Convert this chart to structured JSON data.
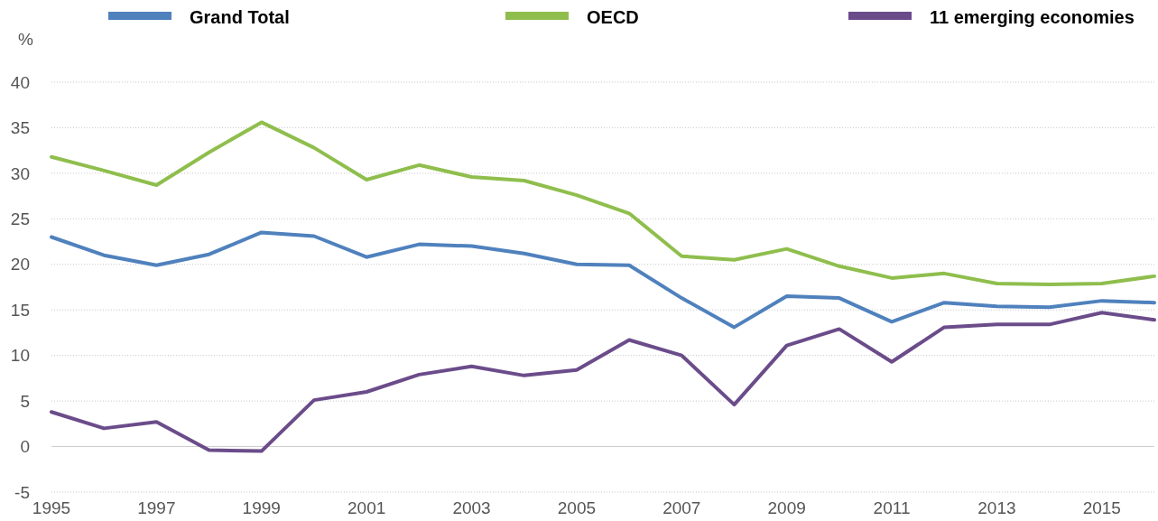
{
  "chart_data": {
    "type": "line",
    "ylabel": "%",
    "x": [
      1995,
      1996,
      1997,
      1998,
      1999,
      2000,
      2001,
      2002,
      2003,
      2004,
      2005,
      2006,
      2007,
      2008,
      2009,
      2010,
      2011,
      2012,
      2013,
      2014,
      2015,
      2016
    ],
    "series": [
      {
        "name": "Grand Total",
        "color": "#4f81bd",
        "values": [
          23.0,
          21.0,
          19.9,
          21.1,
          23.5,
          23.1,
          20.8,
          22.2,
          22.0,
          21.2,
          20.0,
          19.9,
          16.3,
          13.1,
          16.5,
          16.3,
          13.7,
          15.8,
          15.4,
          15.3,
          16.0,
          15.8
        ]
      },
      {
        "name": "OECD",
        "color": "#8fbe4d",
        "values": [
          31.8,
          30.3,
          28.7,
          32.3,
          35.6,
          32.8,
          29.3,
          30.9,
          29.6,
          29.2,
          27.6,
          25.6,
          20.9,
          20.5,
          21.7,
          19.8,
          18.5,
          19.0,
          17.9,
          17.8,
          17.9,
          18.7
        ]
      },
      {
        "name": "11 emerging economies",
        "color": "#6b4c8a",
        "values": [
          3.8,
          2.0,
          2.7,
          -0.4,
          -0.5,
          5.1,
          6.0,
          7.9,
          8.8,
          7.8,
          8.4,
          11.7,
          10.0,
          4.6,
          11.1,
          12.9,
          9.3,
          13.1,
          13.4,
          13.4,
          14.7,
          13.9
        ]
      }
    ],
    "xlim": [
      1995,
      2016
    ],
    "xticks": [
      1995,
      1997,
      1999,
      2001,
      2003,
      2005,
      2007,
      2009,
      2011,
      2013,
      2015
    ],
    "ylim": [
      -5,
      40
    ],
    "yticks": [
      -5,
      0,
      5,
      10,
      15,
      20,
      25,
      30,
      35,
      40
    ],
    "grid": "y",
    "legend": "top",
    "marker": "none",
    "line_style": "solid"
  }
}
